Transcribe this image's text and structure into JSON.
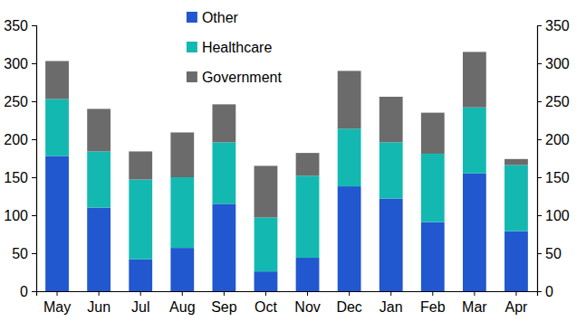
{
  "chart_data": {
    "type": "bar",
    "stacked": true,
    "legend": "top",
    "categories": [
      "May",
      "Jun",
      "Jul",
      "Aug",
      "Sep",
      "Oct",
      "Nov",
      "Dec",
      "Jan",
      "Feb",
      "Mar",
      "Apr"
    ],
    "series": [
      {
        "name": "Other",
        "color": "#2157cf",
        "values": [
          178,
          110,
          42,
          57,
          115,
          26,
          44,
          138,
          122,
          91,
          155,
          79
        ]
      },
      {
        "name": "Healthcare",
        "color": "#13b9b1",
        "values": [
          75,
          74,
          105,
          93,
          81,
          71,
          108,
          76,
          74,
          90,
          87,
          87
        ]
      },
      {
        "name": "Government",
        "color": "#6b6b6b",
        "values": [
          50,
          56,
          37,
          59,
          50,
          68,
          30,
          76,
          60,
          54,
          73,
          8
        ]
      }
    ],
    "ylim": [
      0,
      350
    ],
    "yticks": [
      0,
      50,
      100,
      150,
      200,
      250,
      300,
      350
    ],
    "y2lim": [
      0,
      350
    ],
    "y2ticks": [
      0,
      50,
      100,
      150,
      200,
      250,
      300,
      350
    ]
  }
}
